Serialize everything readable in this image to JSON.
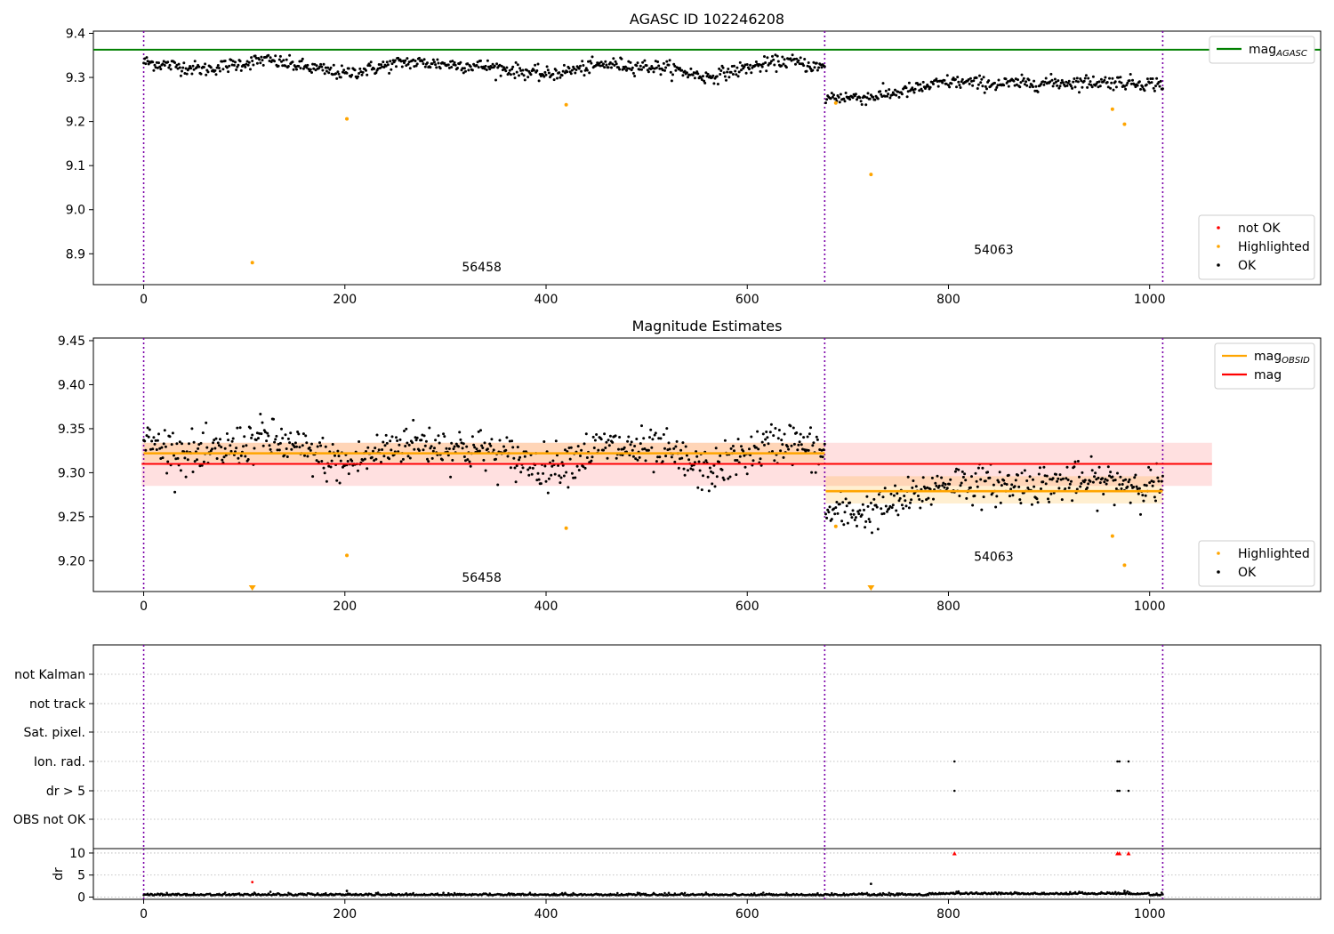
{
  "colors": {
    "green": "#008000",
    "orange": "#ffa500",
    "red": "#ff0000",
    "black": "#000000",
    "purple": "#7b00a8"
  },
  "chart_data": [
    {
      "type": "scatter",
      "title": "AGASC ID 102246208",
      "xlim": [
        -50,
        1170
      ],
      "ylim": [
        8.83,
        9.405
      ],
      "xticks": [
        0,
        200,
        400,
        600,
        800,
        1000
      ],
      "yticks": [
        8.9,
        9.0,
        9.1,
        9.2,
        9.3,
        9.4
      ],
      "ytick_labels": [
        "8.9",
        "9.0",
        "9.1",
        "9.2",
        "9.3",
        "9.4"
      ],
      "vlines": [
        0,
        677,
        1013
      ],
      "hlines": [
        {
          "name": "mag_AGASC",
          "y": 9.363,
          "x": [
            -50,
            1170
          ],
          "color": "#008000"
        }
      ],
      "segment_labels": [
        {
          "text": "56458",
          "x": 336,
          "y": 8.86
        },
        {
          "text": "54063",
          "x": 845,
          "y": 8.9
        }
      ],
      "segments": [
        {
          "x": [
            0,
            677
          ],
          "base": [
            [
              0,
              9.335
            ],
            [
              60,
              9.318
            ],
            [
              120,
              9.34
            ],
            [
              200,
              9.308
            ],
            [
              260,
              9.335
            ],
            [
              340,
              9.325
            ],
            [
              400,
              9.306
            ],
            [
              460,
              9.33
            ],
            [
              520,
              9.322
            ],
            [
              560,
              9.3
            ],
            [
              600,
              9.322
            ],
            [
              640,
              9.338
            ],
            [
              677,
              9.32
            ]
          ],
          "noise": 0.008
        },
        {
          "x": [
            678,
            1013
          ],
          "base": [
            [
              678,
              9.255
            ],
            [
              720,
              9.255
            ],
            [
              760,
              9.27
            ],
            [
              800,
              9.29
            ],
            [
              850,
              9.285
            ],
            [
              900,
              9.288
            ],
            [
              960,
              9.29
            ],
            [
              1013,
              9.285
            ]
          ],
          "noise": 0.008
        }
      ],
      "highlighted": [
        [
          108,
          8.88
        ],
        [
          202,
          9.206
        ],
        [
          420,
          9.238
        ],
        [
          688,
          9.242
        ],
        [
          723,
          9.08
        ],
        [
          963,
          9.228
        ],
        [
          975,
          9.194
        ]
      ],
      "legends": [
        {
          "position": "upper-right",
          "entries": [
            {
              "label": "mag",
              "sub": "AGASC",
              "type": "line",
              "color": "#008000"
            }
          ]
        },
        {
          "position": "lower-right",
          "entries": [
            {
              "label": "not OK",
              "type": "dot",
              "color": "#ff0000"
            },
            {
              "label": "Highlighted",
              "type": "dot",
              "color": "#ffa500"
            },
            {
              "label": "OK",
              "type": "dot",
              "color": "#000000"
            }
          ]
        }
      ]
    },
    {
      "type": "scatter",
      "title": "Magnitude Estimates",
      "xlim": [
        -50,
        1170
      ],
      "ylim": [
        9.165,
        9.453
      ],
      "xticks": [
        0,
        200,
        400,
        600,
        800,
        1000
      ],
      "yticks": [
        9.2,
        9.25,
        9.3,
        9.35,
        9.4,
        9.45
      ],
      "ytick_labels": [
        "9.20",
        "9.25",
        "9.30",
        "9.35",
        "9.40",
        "9.45"
      ],
      "vlines": [
        0,
        677,
        1013
      ],
      "bands": [
        {
          "x": [
            -2,
            1062
          ],
          "y": [
            9.285,
            9.334
          ],
          "color": "#ff0000",
          "alpha": 0.12
        },
        {
          "x": [
            0,
            677
          ],
          "y": [
            9.312,
            9.334
          ],
          "color": "#ffa500",
          "alpha": 0.18
        },
        {
          "x": [
            678,
            1013
          ],
          "y": [
            9.265,
            9.296
          ],
          "color": "#ffa500",
          "alpha": 0.18
        }
      ],
      "hlines": [
        {
          "name": "mag",
          "y": 9.31,
          "x": [
            -2,
            1062
          ],
          "color": "#ff0000"
        },
        {
          "name": "mag_OBSID",
          "y": 9.322,
          "x": [
            0,
            677
          ],
          "color": "#ffa500"
        },
        {
          "name": "mag_OBSID",
          "y": 9.279,
          "x": [
            678,
            1013
          ],
          "color": "#ffa500"
        }
      ],
      "segment_labels": [
        {
          "text": "56458",
          "x": 336,
          "y": 9.176
        },
        {
          "text": "54063",
          "x": 845,
          "y": 9.2
        }
      ],
      "segments": [
        {
          "x": [
            0,
            677
          ],
          "base": [
            [
              0,
              9.335
            ],
            [
              60,
              9.318
            ],
            [
              120,
              9.34
            ],
            [
              200,
              9.308
            ],
            [
              260,
              9.335
            ],
            [
              340,
              9.325
            ],
            [
              400,
              9.306
            ],
            [
              460,
              9.33
            ],
            [
              520,
              9.322
            ],
            [
              560,
              9.3
            ],
            [
              600,
              9.322
            ],
            [
              640,
              9.338
            ],
            [
              677,
              9.32
            ]
          ],
          "noise": 0.012
        },
        {
          "x": [
            678,
            1013
          ],
          "base": [
            [
              678,
              9.255
            ],
            [
              720,
              9.255
            ],
            [
              760,
              9.27
            ],
            [
              800,
              9.29
            ],
            [
              850,
              9.285
            ],
            [
              900,
              9.288
            ],
            [
              960,
              9.29
            ],
            [
              1013,
              9.285
            ]
          ],
          "noise": 0.011
        }
      ],
      "highlighted": [
        [
          202,
          9.206
        ],
        [
          420,
          9.237
        ],
        [
          688,
          9.239
        ],
        [
          963,
          9.228
        ],
        [
          975,
          9.195
        ]
      ],
      "offscale_markers": [
        [
          108,
          9.167
        ],
        [
          723,
          9.167
        ]
      ],
      "legends": [
        {
          "position": "upper-right",
          "entries": [
            {
              "label": "mag",
              "sub": "OBSID",
              "type": "line",
              "color": "#ffa500"
            },
            {
              "label": "mag",
              "type": "line",
              "color": "#ff0000"
            }
          ]
        },
        {
          "position": "lower-right",
          "entries": [
            {
              "label": "Highlighted",
              "type": "dot",
              "color": "#ffa500"
            },
            {
              "label": "OK",
              "type": "dot",
              "color": "#000000"
            }
          ]
        }
      ]
    },
    {
      "type": "scatter",
      "title": "",
      "xlim": [
        -50,
        1170
      ],
      "flag_labels": [
        "not Kalman",
        "not track",
        "Sat. pixel.",
        "Ion. rad.",
        "dr > 5",
        "OBS not OK"
      ],
      "vlines": [
        0,
        677,
        1013
      ],
      "flag_points": [
        {
          "flag": "Ion. rad.",
          "x": [
            806,
            968,
            970,
            979
          ]
        },
        {
          "flag": "dr > 5",
          "x": [
            806,
            968,
            970,
            979
          ]
        }
      ]
    },
    {
      "type": "scatter",
      "title": "",
      "ylabel": "dr",
      "xlim": [
        -50,
        1170
      ],
      "ylim": [
        -0.5,
        11
      ],
      "xticks": [
        0,
        200,
        400,
        600,
        800,
        1000
      ],
      "yticks": [
        0,
        5,
        10
      ],
      "ytick_labels": [
        "0",
        "5",
        "10"
      ],
      "vlines": [
        0,
        677,
        1013
      ],
      "ok_noise": {
        "x": [
          0,
          1013
        ],
        "base": 0.4,
        "spread": 0.35
      },
      "highlighted": [
        [
          202,
          1.4
        ],
        [
          723,
          3.0
        ],
        [
          975,
          1.4
        ]
      ],
      "not_ok": [
        [
          108,
          3.4
        ],
        [
          806,
          9.9
        ],
        [
          968,
          9.9
        ],
        [
          970,
          9.9
        ],
        [
          979,
          9.9
        ]
      ]
    }
  ]
}
